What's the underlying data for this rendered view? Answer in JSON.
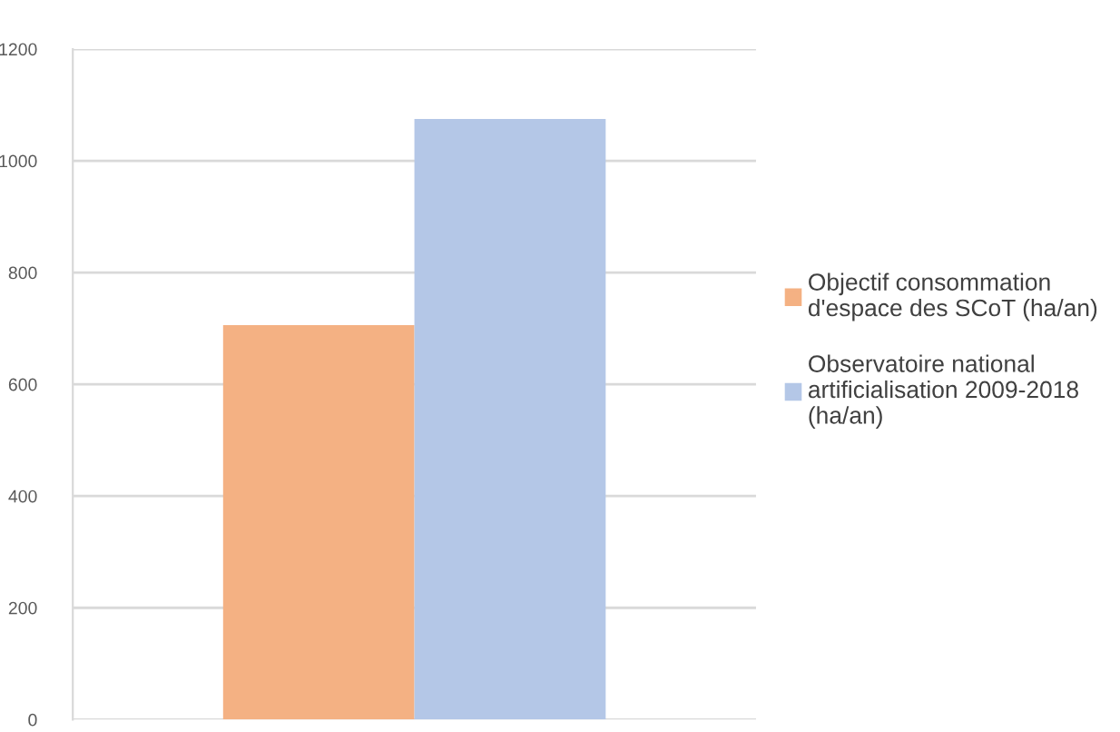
{
  "chart_data": {
    "type": "bar",
    "categories": [
      null
    ],
    "series": [
      {
        "name": "Objectif consommation\nd'espace des SCoT (ha/an)",
        "color": "#f4b183",
        "values": [
          706
        ]
      },
      {
        "name": "Observatoire national\nartificialisation 2009-2018\n(ha/an)",
        "color": "#b4c7e7",
        "values": [
          1075
        ]
      }
    ],
    "ylim": [
      0,
      1200
    ],
    "yticks": [
      0,
      200,
      400,
      600,
      800,
      1000,
      1200
    ],
    "grid": "y",
    "legend": "right"
  }
}
